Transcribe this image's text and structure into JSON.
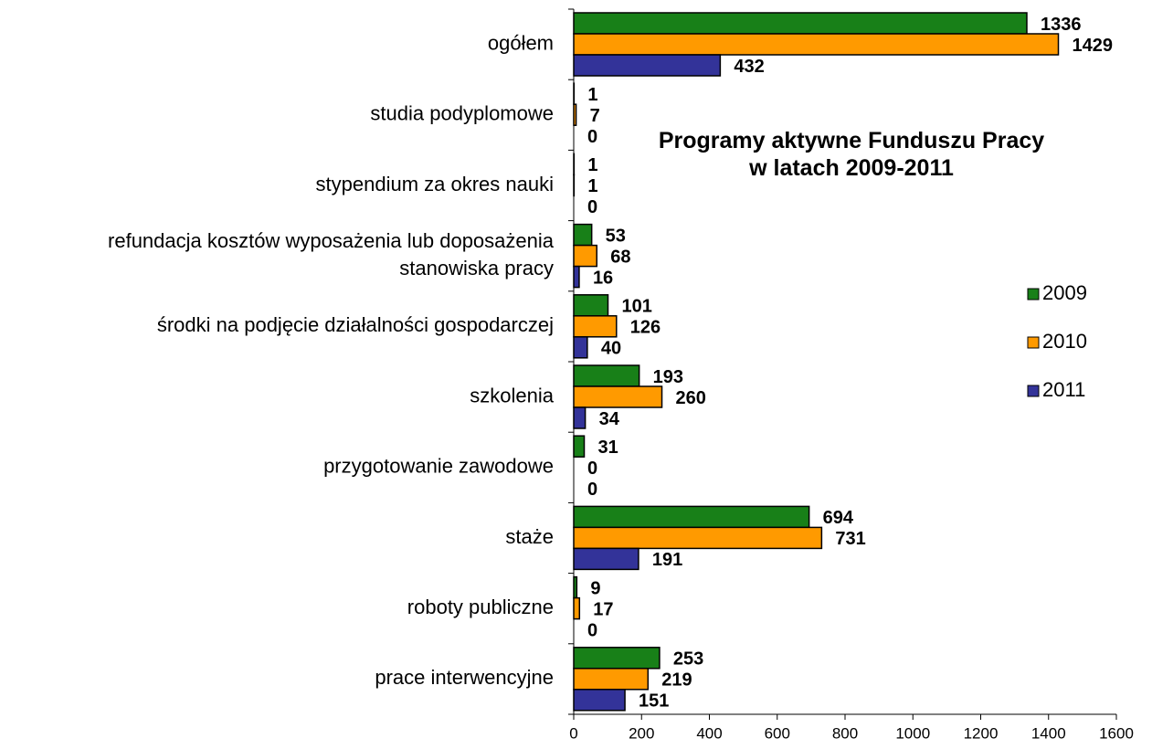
{
  "chart_data": {
    "type": "hbar",
    "title": "Programy aktywne Funduszu Pracy w latach 2009-2011",
    "categories": [
      "ogółem",
      "studia podyplomowe",
      "stypendium za okres nauki",
      "refundacja kosztów wyposażenia lub doposażenia stanowiska pracy",
      "środki na podjęcie działalności gospodarczej",
      "szkolenia",
      "przygotowanie zawodowe",
      "staże",
      "roboty publiczne",
      "prace interwencyjne"
    ],
    "series": [
      {
        "name": "2009",
        "color": "#188018",
        "values": [
          1336,
          1,
          1,
          53,
          101,
          193,
          31,
          694,
          9,
          253
        ]
      },
      {
        "name": "2010",
        "color": "#ff9a00",
        "values": [
          1429,
          7,
          1,
          68,
          126,
          260,
          0,
          731,
          17,
          219
        ]
      },
      {
        "name": "2011",
        "color": "#333399",
        "values": [
          432,
          0,
          0,
          16,
          40,
          34,
          0,
          191,
          0,
          151
        ]
      }
    ],
    "xlim": [
      0,
      1600
    ],
    "xticks": [
      0,
      200,
      400,
      600,
      800,
      1000,
      1200,
      1400,
      1600
    ],
    "legend": "right"
  }
}
